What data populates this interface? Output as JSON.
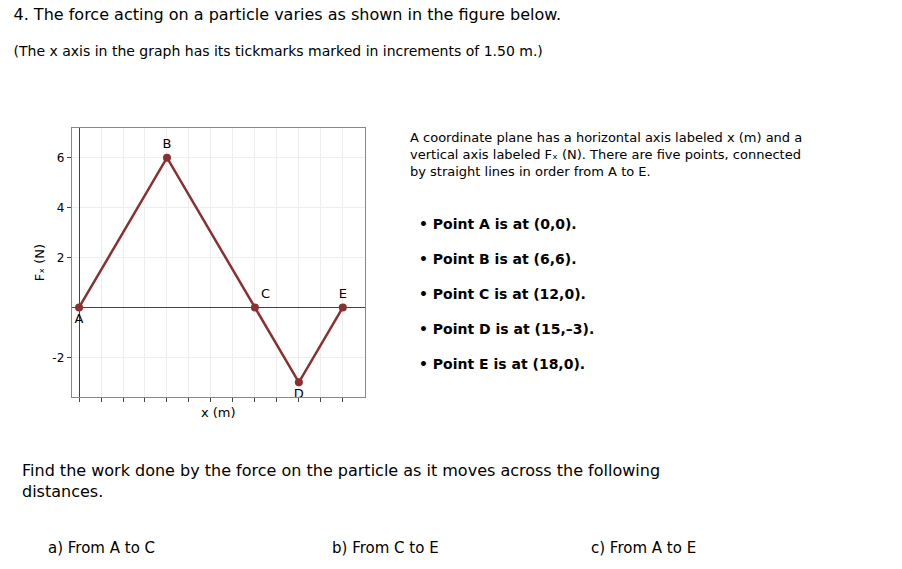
{
  "chart_data": {
    "type": "line",
    "title": "4. The force acting on a particle varies as shown in the figure below.",
    "subtitle": "(The x axis in the graph has its tickmarks marked in increments of 1.50 m.)",
    "x_label": "x (m)",
    "y_label": "Fₓ (N)",
    "x": [
      0,
      6,
      12,
      15,
      18
    ],
    "values": [
      0,
      6,
      0,
      -3,
      0
    ],
    "labels": [
      "A",
      "B",
      "C",
      "D",
      "E"
    ],
    "color": "#8B3030",
    "marker": "circle",
    "xlim": [
      -0.5,
      19.5
    ],
    "ylim": [
      -3.6,
      7.2
    ],
    "xticks": [
      0,
      1.5,
      3,
      4.5,
      6,
      7.5,
      9,
      10.5,
      12,
      13.5,
      15,
      16.5,
      18
    ],
    "yticks": [
      -2,
      2,
      4,
      6
    ],
    "tick_labels": "y",
    "grid": true,
    "annotations": {
      "description": "A coordinate plane has a horizontal axis labeled x (m) and a vertical axis labeled Fₓ (N). There are five points, connected by straight lines in order from A to E.",
      "bullets": [
        "• Point A is at (0,0).",
        "• Point B is at (6,6).",
        "• Point C is at (12,0).",
        "• Point D is at (15,–3).",
        "• Point E is at (18,0)."
      ],
      "question": "Find the work done by the force on the particle as it moves across the following distances.",
      "parts": [
        "a) From A to C",
        "b) From C to E",
        "c) From A to E"
      ]
    }
  }
}
